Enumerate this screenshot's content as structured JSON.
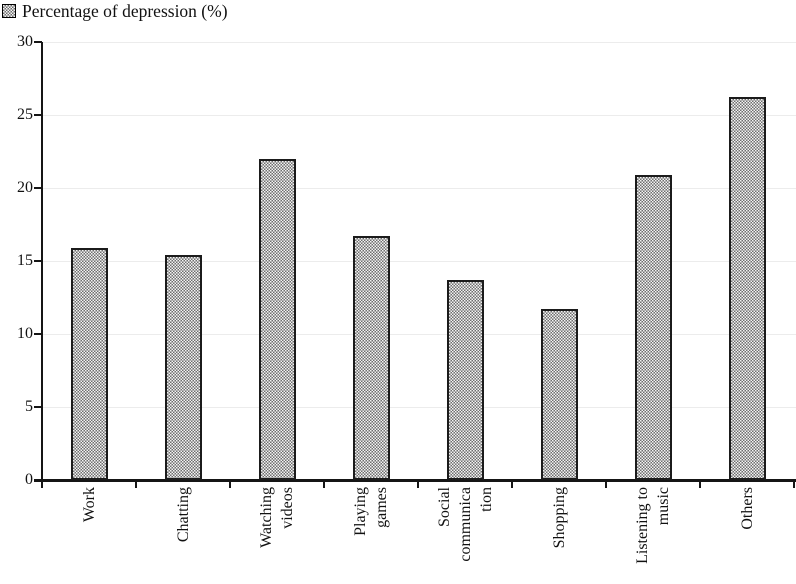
{
  "legend": {
    "label": "Percentage of depression (%)"
  },
  "chart_data": {
    "type": "bar",
    "title": "Percentage of depression (%)",
    "categories": [
      "Work",
      "Chatting",
      "Watching\nvideos",
      "Playing\ngames",
      "Social\ncommunica\ntion",
      "Shopping",
      "Listening to\nmusic",
      "Others"
    ],
    "values": [
      15.9,
      15.4,
      22.0,
      16.7,
      13.7,
      11.7,
      20.9,
      26.2
    ],
    "xlabel": "",
    "ylabel": "",
    "ylim": [
      0,
      30
    ],
    "yticks": [
      0,
      5,
      10,
      15,
      20,
      25,
      30
    ],
    "ytick_labels": [
      "0",
      "5",
      "10",
      "15",
      "20",
      "25",
      "30"
    ],
    "grid": true,
    "legend_entries": [
      "Percentage of depression (%)"
    ],
    "legend_position": "top-left",
    "bar_fill_pattern": "checkerboard",
    "bar_pattern_colors": [
      "#6e6e6e",
      "#f4f4f4"
    ],
    "bar_border_color": "#1b1b1b",
    "gridline_color": "#ececec",
    "axis_color": "#151515",
    "background_color": "#ffffff"
  }
}
